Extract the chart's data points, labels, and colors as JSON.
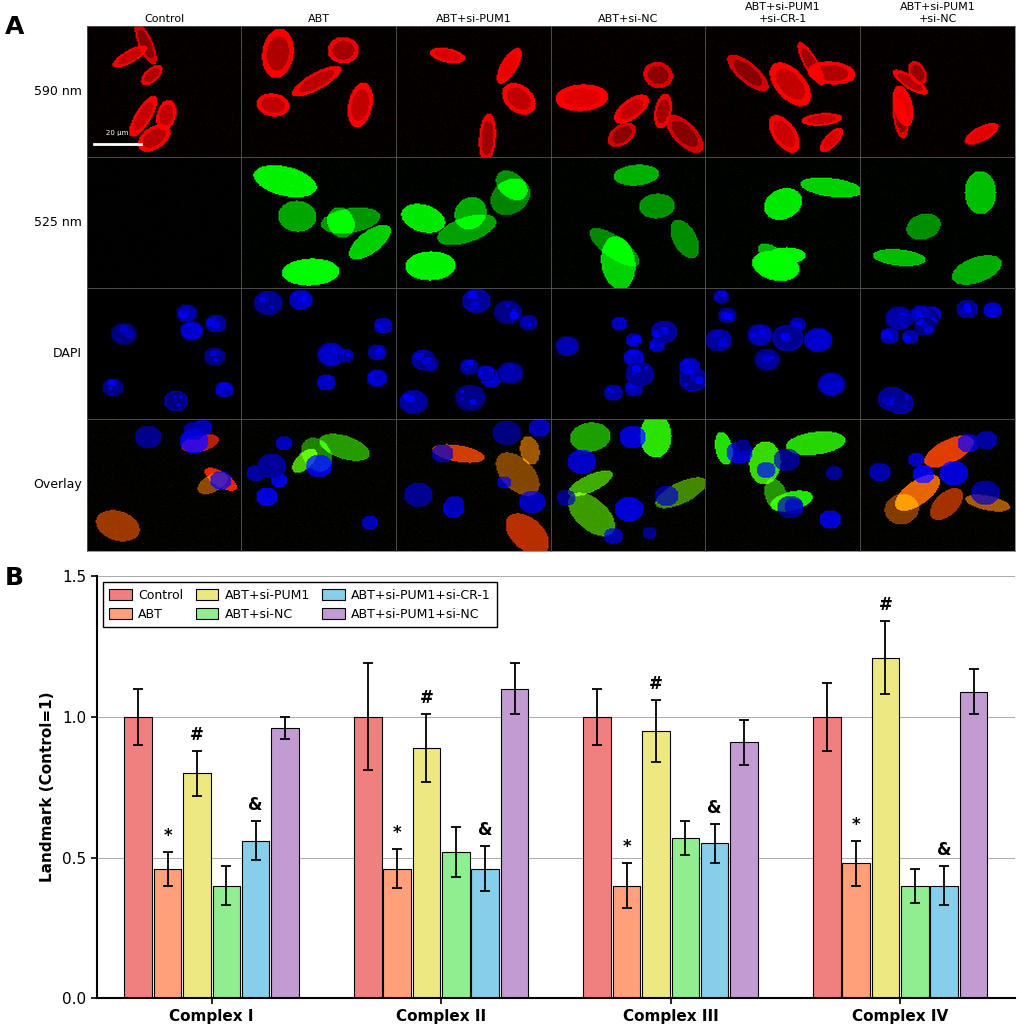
{
  "panel_A_label": "A",
  "panel_B_label": "B",
  "col_labels": [
    "Control",
    "ABT",
    "ABT+si-PUM1",
    "ABT+si-NC",
    "ABT+si-PUM1\n+si-CR-1",
    "ABT+si-PUM1\n+si-NC"
  ],
  "row_labels": [
    "590 nm",
    "525 nm",
    "DAPI",
    "Overlay"
  ],
  "bar_groups": [
    "Complex I",
    "Complex II",
    "Complex III",
    "Complex IV"
  ],
  "bar_series": [
    "Control",
    "ABT",
    "ABT+si-PUM1",
    "ABT+si-NC",
    "ABT+si-PUM1+si-CR-1",
    "ABT+si-PUM1+si-NC"
  ],
  "bar_colors": [
    "#F08080",
    "#FFA07A",
    "#EEE882",
    "#90EE90",
    "#87CEEB",
    "#C39BD3"
  ],
  "values": [
    [
      1.0,
      0.46,
      0.8,
      0.4,
      0.56,
      0.96
    ],
    [
      1.0,
      0.46,
      0.89,
      0.52,
      0.46,
      1.1
    ],
    [
      1.0,
      0.4,
      0.95,
      0.57,
      0.55,
      0.91
    ],
    [
      1.0,
      0.48,
      1.21,
      0.4,
      0.4,
      1.09
    ]
  ],
  "errors": [
    [
      0.1,
      0.06,
      0.08,
      0.07,
      0.07,
      0.04
    ],
    [
      0.19,
      0.07,
      0.12,
      0.09,
      0.08,
      0.09
    ],
    [
      0.1,
      0.08,
      0.11,
      0.06,
      0.07,
      0.08
    ],
    [
      0.12,
      0.08,
      0.13,
      0.06,
      0.07,
      0.08
    ]
  ],
  "annotations": [
    [
      "",
      "*",
      "#",
      "",
      "&",
      ""
    ],
    [
      "",
      "*",
      "#",
      "",
      "&",
      ""
    ],
    [
      "",
      "*",
      "#",
      "",
      "&",
      ""
    ],
    [
      "",
      "*",
      "#",
      "",
      "&",
      ""
    ]
  ],
  "ylabel": "Landmark (Control=1)",
  "ylim": [
    0.0,
    1.5
  ],
  "yticks": [
    0.0,
    0.5,
    1.0,
    1.5
  ],
  "legend_labels": [
    "Control",
    "ABT",
    "ABT+si-PUM1",
    "ABT+si-NC",
    "ABT+si-PUM1+si-CR-1",
    "ABT+si-PUM1+si-NC"
  ],
  "background_color": "#FFFFFF"
}
